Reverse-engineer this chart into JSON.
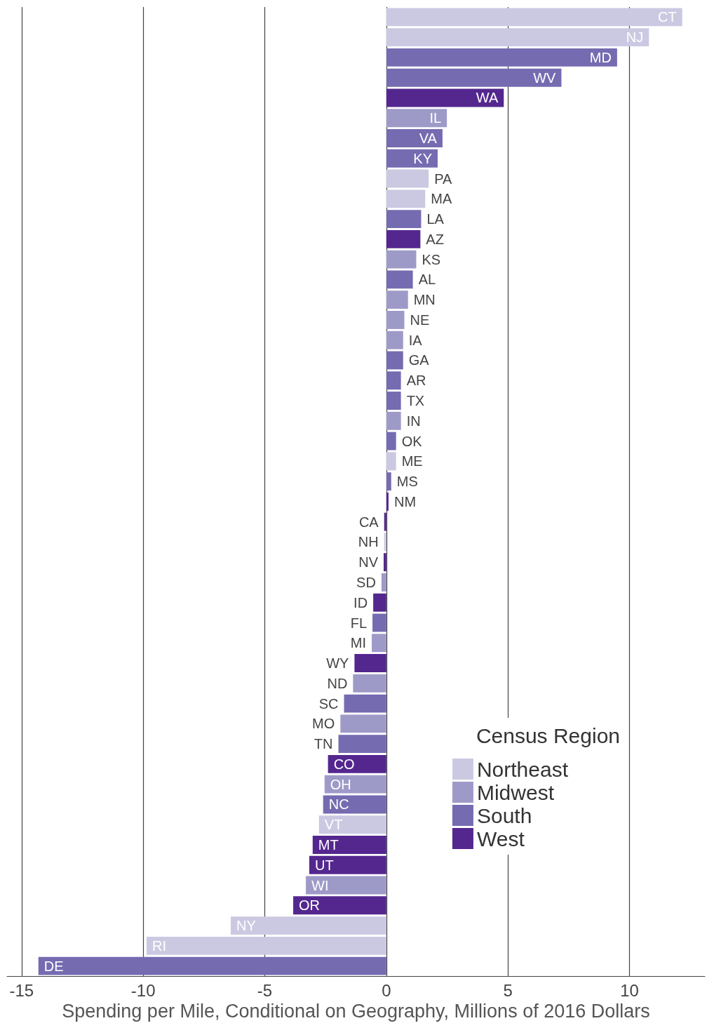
{
  "chart_data": {
    "type": "bar",
    "orientation": "horizontal",
    "xlabel": "Spending per Mile, Conditional on Geography, Millions of 2016 Dollars",
    "categories": [
      "CT",
      "NJ",
      "MD",
      "WV",
      "WA",
      "IL",
      "VA",
      "KY",
      "PA",
      "MA",
      "LA",
      "AZ",
      "KS",
      "AL",
      "MN",
      "NE",
      "IA",
      "GA",
      "AR",
      "TX",
      "IN",
      "OK",
      "ME",
      "MS",
      "NM",
      "CA",
      "NH",
      "NV",
      "SD",
      "ID",
      "FL",
      "MI",
      "WY",
      "ND",
      "SC",
      "MO",
      "TN",
      "CO",
      "OH",
      "NC",
      "VT",
      "MT",
      "UT",
      "WI",
      "OR",
      "NY",
      "RI",
      "DE"
    ],
    "series": [
      {
        "name": "Northeast",
        "color": "#cbc9e2",
        "values": [
          12.17,
          10.8,
          null,
          null,
          null,
          null,
          null,
          null,
          1.74,
          1.6,
          null,
          null,
          null,
          null,
          null,
          null,
          null,
          null,
          null,
          null,
          null,
          null,
          0.4,
          null,
          null,
          null,
          -0.09,
          null,
          null,
          null,
          null,
          null,
          null,
          null,
          null,
          null,
          null,
          null,
          null,
          null,
          -2.77,
          null,
          null,
          null,
          null,
          -6.4,
          -9.86,
          null
        ]
      },
      {
        "name": "Midwest",
        "color": "#9e9ac8",
        "values": [
          null,
          null,
          null,
          null,
          null,
          2.49,
          null,
          null,
          null,
          null,
          null,
          null,
          1.23,
          null,
          0.89,
          0.74,
          0.69,
          null,
          null,
          null,
          0.6,
          null,
          null,
          null,
          null,
          null,
          null,
          null,
          -0.2,
          null,
          null,
          -0.6,
          null,
          -1.37,
          null,
          -1.89,
          null,
          null,
          -2.54,
          null,
          null,
          null,
          null,
          -3.31,
          null,
          null,
          null,
          null
        ]
      },
      {
        "name": "South",
        "color": "#756bb1",
        "values": [
          null,
          null,
          9.49,
          7.2,
          null,
          null,
          2.31,
          2.11,
          null,
          null,
          1.43,
          null,
          null,
          1.09,
          null,
          null,
          null,
          0.69,
          0.6,
          0.6,
          null,
          0.4,
          null,
          0.2,
          null,
          null,
          null,
          null,
          null,
          null,
          -0.57,
          null,
          null,
          null,
          -1.74,
          null,
          -1.97,
          null,
          null,
          -2.6,
          null,
          null,
          null,
          null,
          null,
          null,
          null,
          -14.31
        ]
      },
      {
        "name": "West",
        "color": "#54278f",
        "values": [
          null,
          null,
          null,
          null,
          4.83,
          null,
          null,
          null,
          null,
          null,
          null,
          1.4,
          null,
          null,
          null,
          null,
          null,
          null,
          null,
          null,
          null,
          null,
          null,
          null,
          0.09,
          -0.09,
          null,
          -0.11,
          null,
          -0.54,
          null,
          null,
          -1.31,
          null,
          null,
          null,
          null,
          -2.4,
          null,
          null,
          null,
          -3.03,
          -3.17,
          null,
          -3.83,
          null,
          null,
          null
        ]
      }
    ],
    "legend_title": "Census Region",
    "legend": "right",
    "xlim": [
      -15.6,
      13.1
    ],
    "xticks": [
      -15,
      -10,
      -5,
      0,
      5,
      10
    ],
    "grid": "x",
    "tick_labels": "x"
  }
}
